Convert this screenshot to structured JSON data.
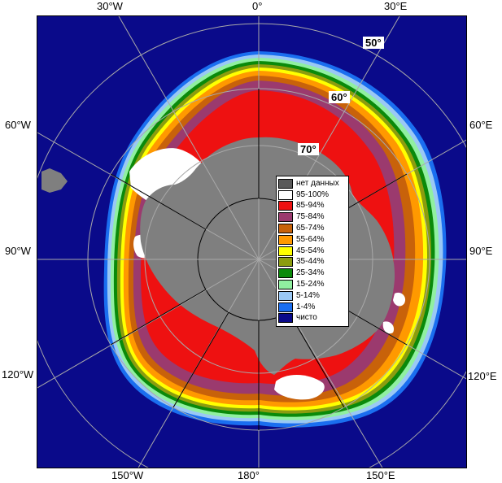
{
  "map": {
    "meridian_labels": {
      "top": [
        "30°W",
        "0°",
        "30°E"
      ],
      "bottom": [
        "150°W",
        "180°",
        "150°E"
      ],
      "left": [
        "60°W",
        "90°W",
        "120°W"
      ],
      "right": [
        "60°E",
        "90°E",
        "120°E"
      ]
    },
    "latitude_labels": [
      "50°",
      "60°",
      "70°"
    ],
    "colors": {
      "ocean": "#0a0a8a",
      "land": "#7f7f7f",
      "graticule": "#a9a9a9"
    }
  },
  "legend": {
    "items": [
      {
        "label": "нет данных",
        "color": "#5a5a5a"
      },
      {
        "label": "95-100%",
        "color": "#ffffff"
      },
      {
        "label": "85-94%",
        "color": "#ee1111"
      },
      {
        "label": "75-84%",
        "color": "#9b3a6e"
      },
      {
        "label": "65-74%",
        "color": "#c8620a"
      },
      {
        "label": "55-64%",
        "color": "#ff9900"
      },
      {
        "label": "45-54%",
        "color": "#ffff00"
      },
      {
        "label": "35-44%",
        "color": "#8c9c10"
      },
      {
        "label": "25-34%",
        "color": "#0a8a0a"
      },
      {
        "label": "15-24%",
        "color": "#90f0a0"
      },
      {
        "label": "5-14%",
        "color": "#9ac8f5"
      },
      {
        "label": "1-4%",
        "color": "#1a6ef0"
      },
      {
        "label": "чисто",
        "color": "#0a0a8a"
      }
    ]
  }
}
